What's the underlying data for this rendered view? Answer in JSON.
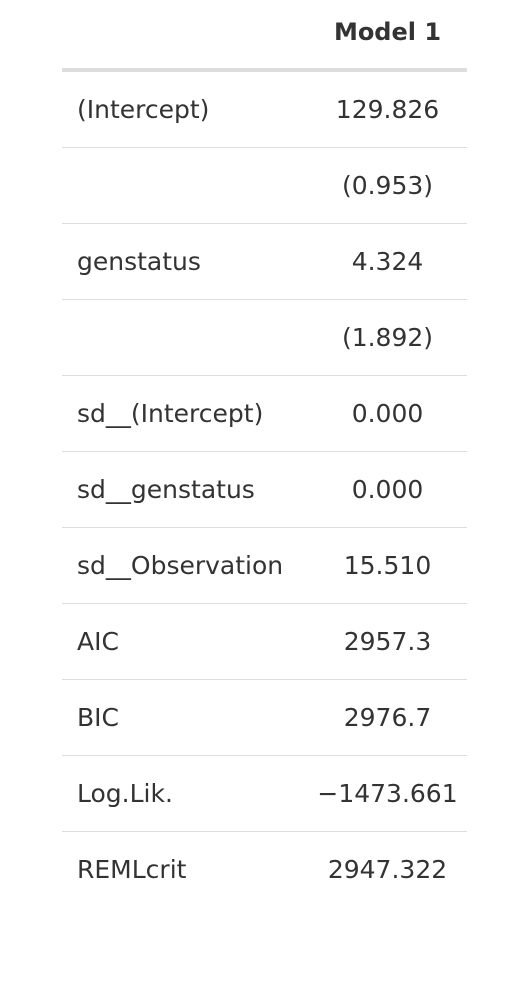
{
  "table": {
    "header": {
      "label": "",
      "model": "Model 1"
    },
    "rows": [
      {
        "label": "(Intercept)",
        "value": "129.826"
      },
      {
        "label": "",
        "value": "(0.953)"
      },
      {
        "label": "genstatus",
        "value": "4.324"
      },
      {
        "label": "",
        "value": "(1.892)"
      },
      {
        "label": "sd__(Intercept)",
        "value": "0.000"
      },
      {
        "label": "sd__genstatus",
        "value": "0.000"
      },
      {
        "label": "sd__Observation",
        "value": "15.510"
      },
      {
        "label": "AIC",
        "value": "2957.3"
      },
      {
        "label": "BIC",
        "value": "2976.7"
      },
      {
        "label": "Log.Lik.",
        "value": "−1473.661"
      },
      {
        "label": "REMLcrit",
        "value": "2947.322"
      }
    ]
  }
}
